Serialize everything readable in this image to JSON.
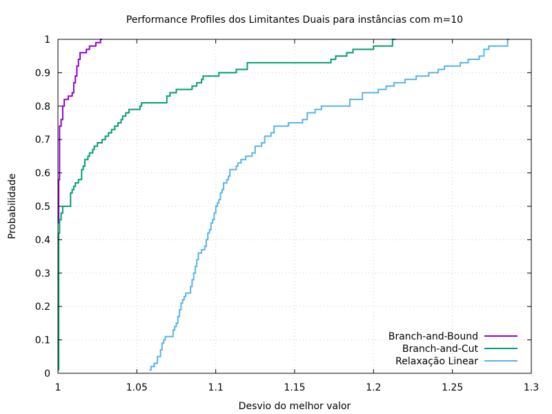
{
  "chart_data": {
    "type": "line",
    "title": "Performance Profiles dos Limitantes Duais para instâncias com m=10",
    "xlabel": "Desvio do melhor valor",
    "ylabel": "Probabilidade",
    "xlim": [
      1,
      1.3
    ],
    "ylim": [
      0,
      1
    ],
    "x_ticks": [
      1,
      1.05,
      1.1,
      1.15,
      1.2,
      1.25,
      1.3
    ],
    "x_tick_labels": [
      "1",
      "1.05",
      "1.1",
      "1.15",
      "1.2",
      "1.25",
      "1.3"
    ],
    "y_ticks": [
      0,
      0.1,
      0.2,
      0.3,
      0.4,
      0.5,
      0.6,
      0.7,
      0.8,
      0.9,
      1
    ],
    "y_tick_labels": [
      "0",
      "0.1",
      "0.2",
      "0.3",
      "0.4",
      "0.5",
      "0.6",
      "0.7",
      "0.8",
      "0.9",
      "1"
    ],
    "grid": true,
    "legend_position": "bottom-right",
    "step": true,
    "series": [
      {
        "name": "Branch-and-Bound",
        "color": "#9400d3",
        "points": [
          [
            1.0,
            0.45
          ],
          [
            1.0005,
            0.58
          ],
          [
            1.001,
            0.74
          ],
          [
            1.002,
            0.76
          ],
          [
            1.003,
            0.8
          ],
          [
            1.004,
            0.82
          ],
          [
            1.006,
            0.82
          ],
          [
            1.0065,
            0.83
          ],
          [
            1.009,
            0.84
          ],
          [
            1.01,
            0.87
          ],
          [
            1.011,
            0.89
          ],
          [
            1.012,
            0.92
          ],
          [
            1.013,
            0.94
          ],
          [
            1.014,
            0.96
          ],
          [
            1.018,
            0.97
          ],
          [
            1.02,
            0.98
          ],
          [
            1.024,
            0.99
          ],
          [
            1.027,
            1.0
          ],
          [
            1.028,
            1.0
          ]
        ]
      },
      {
        "name": "Branch-and-Cut",
        "color": "#009e73",
        "points": [
          [
            1.0,
            0.01
          ],
          [
            1.0005,
            0.42
          ],
          [
            1.001,
            0.46
          ],
          [
            1.002,
            0.48
          ],
          [
            1.003,
            0.5
          ],
          [
            1.008,
            0.54
          ],
          [
            1.009,
            0.55
          ],
          [
            1.01,
            0.56
          ],
          [
            1.011,
            0.57
          ],
          [
            1.013,
            0.58
          ],
          [
            1.015,
            0.61
          ],
          [
            1.016,
            0.62
          ],
          [
            1.017,
            0.64
          ],
          [
            1.019,
            0.65
          ],
          [
            1.02,
            0.66
          ],
          [
            1.022,
            0.67
          ],
          [
            1.023,
            0.68
          ],
          [
            1.025,
            0.69
          ],
          [
            1.028,
            0.7
          ],
          [
            1.03,
            0.71
          ],
          [
            1.032,
            0.72
          ],
          [
            1.034,
            0.73
          ],
          [
            1.036,
            0.74
          ],
          [
            1.038,
            0.75
          ],
          [
            1.04,
            0.76
          ],
          [
            1.041,
            0.77
          ],
          [
            1.043,
            0.78
          ],
          [
            1.045,
            0.79
          ],
          [
            1.052,
            0.8
          ],
          [
            1.053,
            0.81
          ],
          [
            1.069,
            0.83
          ],
          [
            1.071,
            0.84
          ],
          [
            1.075,
            0.85
          ],
          [
            1.085,
            0.86
          ],
          [
            1.088,
            0.87
          ],
          [
            1.091,
            0.88
          ],
          [
            1.092,
            0.89
          ],
          [
            1.102,
            0.9
          ],
          [
            1.113,
            0.91
          ],
          [
            1.12,
            0.93
          ],
          [
            1.173,
            0.94
          ],
          [
            1.176,
            0.95
          ],
          [
            1.183,
            0.96
          ],
          [
            1.187,
            0.97
          ],
          [
            1.2,
            0.98
          ],
          [
            1.212,
            1.0
          ],
          [
            1.214,
            1.0
          ]
        ]
      },
      {
        "name": "Relaxação Linear",
        "color": "#56b4e9",
        "points": [
          [
            1.058,
            0.01
          ],
          [
            1.059,
            0.02
          ],
          [
            1.061,
            0.03
          ],
          [
            1.063,
            0.05
          ],
          [
            1.065,
            0.07
          ],
          [
            1.066,
            0.09
          ],
          [
            1.067,
            0.1
          ],
          [
            1.068,
            0.11
          ],
          [
            1.073,
            0.13
          ],
          [
            1.074,
            0.14
          ],
          [
            1.075,
            0.15
          ],
          [
            1.076,
            0.17
          ],
          [
            1.077,
            0.19
          ],
          [
            1.078,
            0.21
          ],
          [
            1.079,
            0.22
          ],
          [
            1.08,
            0.23
          ],
          [
            1.081,
            0.24
          ],
          [
            1.084,
            0.26
          ],
          [
            1.085,
            0.28
          ],
          [
            1.086,
            0.3
          ],
          [
            1.087,
            0.32
          ],
          [
            1.088,
            0.34
          ],
          [
            1.089,
            0.36
          ],
          [
            1.091,
            0.37
          ],
          [
            1.093,
            0.38
          ],
          [
            1.094,
            0.4
          ],
          [
            1.095,
            0.42
          ],
          [
            1.096,
            0.43
          ],
          [
            1.097,
            0.45
          ],
          [
            1.098,
            0.46
          ],
          [
            1.099,
            0.48
          ],
          [
            1.1,
            0.5
          ],
          [
            1.101,
            0.51
          ],
          [
            1.102,
            0.52
          ],
          [
            1.103,
            0.54
          ],
          [
            1.104,
            0.55
          ],
          [
            1.105,
            0.57
          ],
          [
            1.107,
            0.58
          ],
          [
            1.108,
            0.59
          ],
          [
            1.109,
            0.61
          ],
          [
            1.113,
            0.62
          ],
          [
            1.114,
            0.63
          ],
          [
            1.116,
            0.64
          ],
          [
            1.119,
            0.65
          ],
          [
            1.123,
            0.66
          ],
          [
            1.125,
            0.68
          ],
          [
            1.129,
            0.69
          ],
          [
            1.131,
            0.71
          ],
          [
            1.135,
            0.72
          ],
          [
            1.137,
            0.74
          ],
          [
            1.146,
            0.75
          ],
          [
            1.155,
            0.76
          ],
          [
            1.158,
            0.78
          ],
          [
            1.163,
            0.79
          ],
          [
            1.167,
            0.8
          ],
          [
            1.185,
            0.82
          ],
          [
            1.193,
            0.84
          ],
          [
            1.203,
            0.85
          ],
          [
            1.208,
            0.86
          ],
          [
            1.213,
            0.87
          ],
          [
            1.22,
            0.88
          ],
          [
            1.227,
            0.89
          ],
          [
            1.235,
            0.9
          ],
          [
            1.241,
            0.91
          ],
          [
            1.245,
            0.92
          ],
          [
            1.255,
            0.93
          ],
          [
            1.26,
            0.94
          ],
          [
            1.267,
            0.95
          ],
          [
            1.27,
            0.97
          ],
          [
            1.273,
            0.98
          ],
          [
            1.285,
            1.0
          ],
          [
            1.286,
            1.0
          ]
        ]
      }
    ]
  }
}
